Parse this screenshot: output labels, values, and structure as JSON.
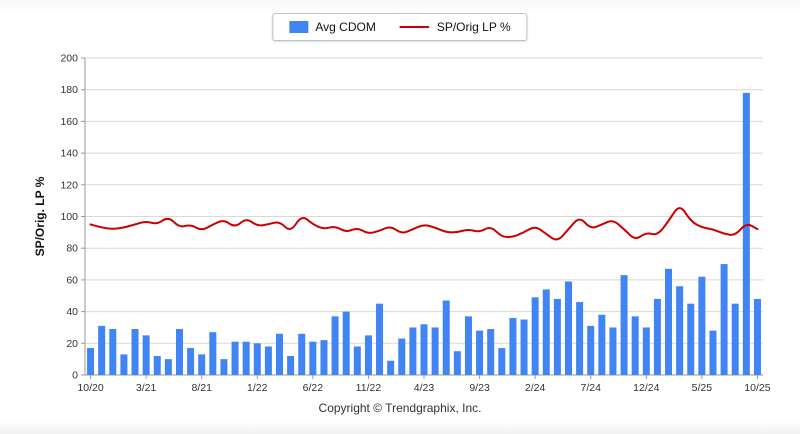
{
  "legend": {
    "bar_label": "Avg CDOM",
    "line_label": "SP/Orig LP %"
  },
  "y_axis_label": "SP/Orig. LP %",
  "footer": "Copyright © Trendgraphix, Inc.",
  "colors": {
    "bar": "#4184f3",
    "line": "#cc0000",
    "grid": "#d9d9d9",
    "axis": "#9a9a9a",
    "text": "#333333"
  },
  "chart_data": {
    "type": "bar+line",
    "title": "",
    "xlabel": "",
    "ylabel": "SP/Orig. LP %",
    "ylim": [
      0,
      200
    ],
    "y_tick_step": 20,
    "grid": true,
    "legend_position": "top-center",
    "x_tick_labels": [
      "10/20",
      "3/21",
      "8/21",
      "1/22",
      "6/22",
      "11/22",
      "4/23",
      "9/23",
      "2/24",
      "7/24",
      "12/24",
      "5/25",
      "10/25"
    ],
    "x_tick_interval": 5,
    "series": [
      {
        "name": "Avg CDOM",
        "type": "bar",
        "values": [
          17,
          31,
          29,
          13,
          29,
          25,
          12,
          10,
          29,
          17,
          13,
          27,
          10,
          21,
          21,
          20,
          18,
          26,
          12,
          26,
          21,
          22,
          37,
          40,
          18,
          25,
          45,
          9,
          23,
          30,
          32,
          30,
          47,
          15,
          37,
          28,
          29,
          17,
          36,
          35,
          49,
          54,
          48,
          59,
          46,
          31,
          38,
          30,
          63,
          37,
          30,
          48,
          67,
          56,
          45,
          62,
          28,
          70,
          45,
          178,
          48
        ]
      },
      {
        "name": "SP/Orig LP %",
        "type": "line",
        "values": [
          95,
          93,
          92,
          93,
          95,
          97,
          95,
          100,
          93,
          95,
          91,
          95,
          98,
          93,
          99,
          94,
          95,
          97,
          90,
          101,
          95,
          92,
          94,
          90,
          93,
          89,
          91,
          94,
          89,
          92,
          95,
          93,
          90,
          90,
          92,
          90,
          94,
          87,
          87,
          90,
          94,
          89,
          84,
          92,
          100,
          92,
          95,
          98,
          92,
          85,
          90,
          88,
          97,
          108,
          97,
          93,
          92,
          89,
          88,
          96,
          92
        ]
      }
    ]
  }
}
